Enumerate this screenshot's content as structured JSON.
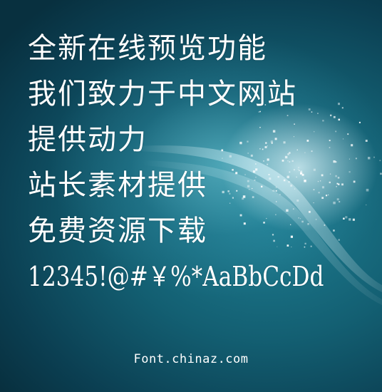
{
  "preview": {
    "lines": [
      "全新在线预览功能",
      "我们致力于中文网站",
      "提供动力",
      "站长素材提供",
      "免费资源下载",
      "12345!@#￥%*AaBbCcDd"
    ],
    "site": "Font.chinaz.com"
  },
  "colors": {
    "text": "#ffffff",
    "background_dark": "#08303f",
    "background_mid": "#1f7f93",
    "glow": "#78d2e1"
  }
}
